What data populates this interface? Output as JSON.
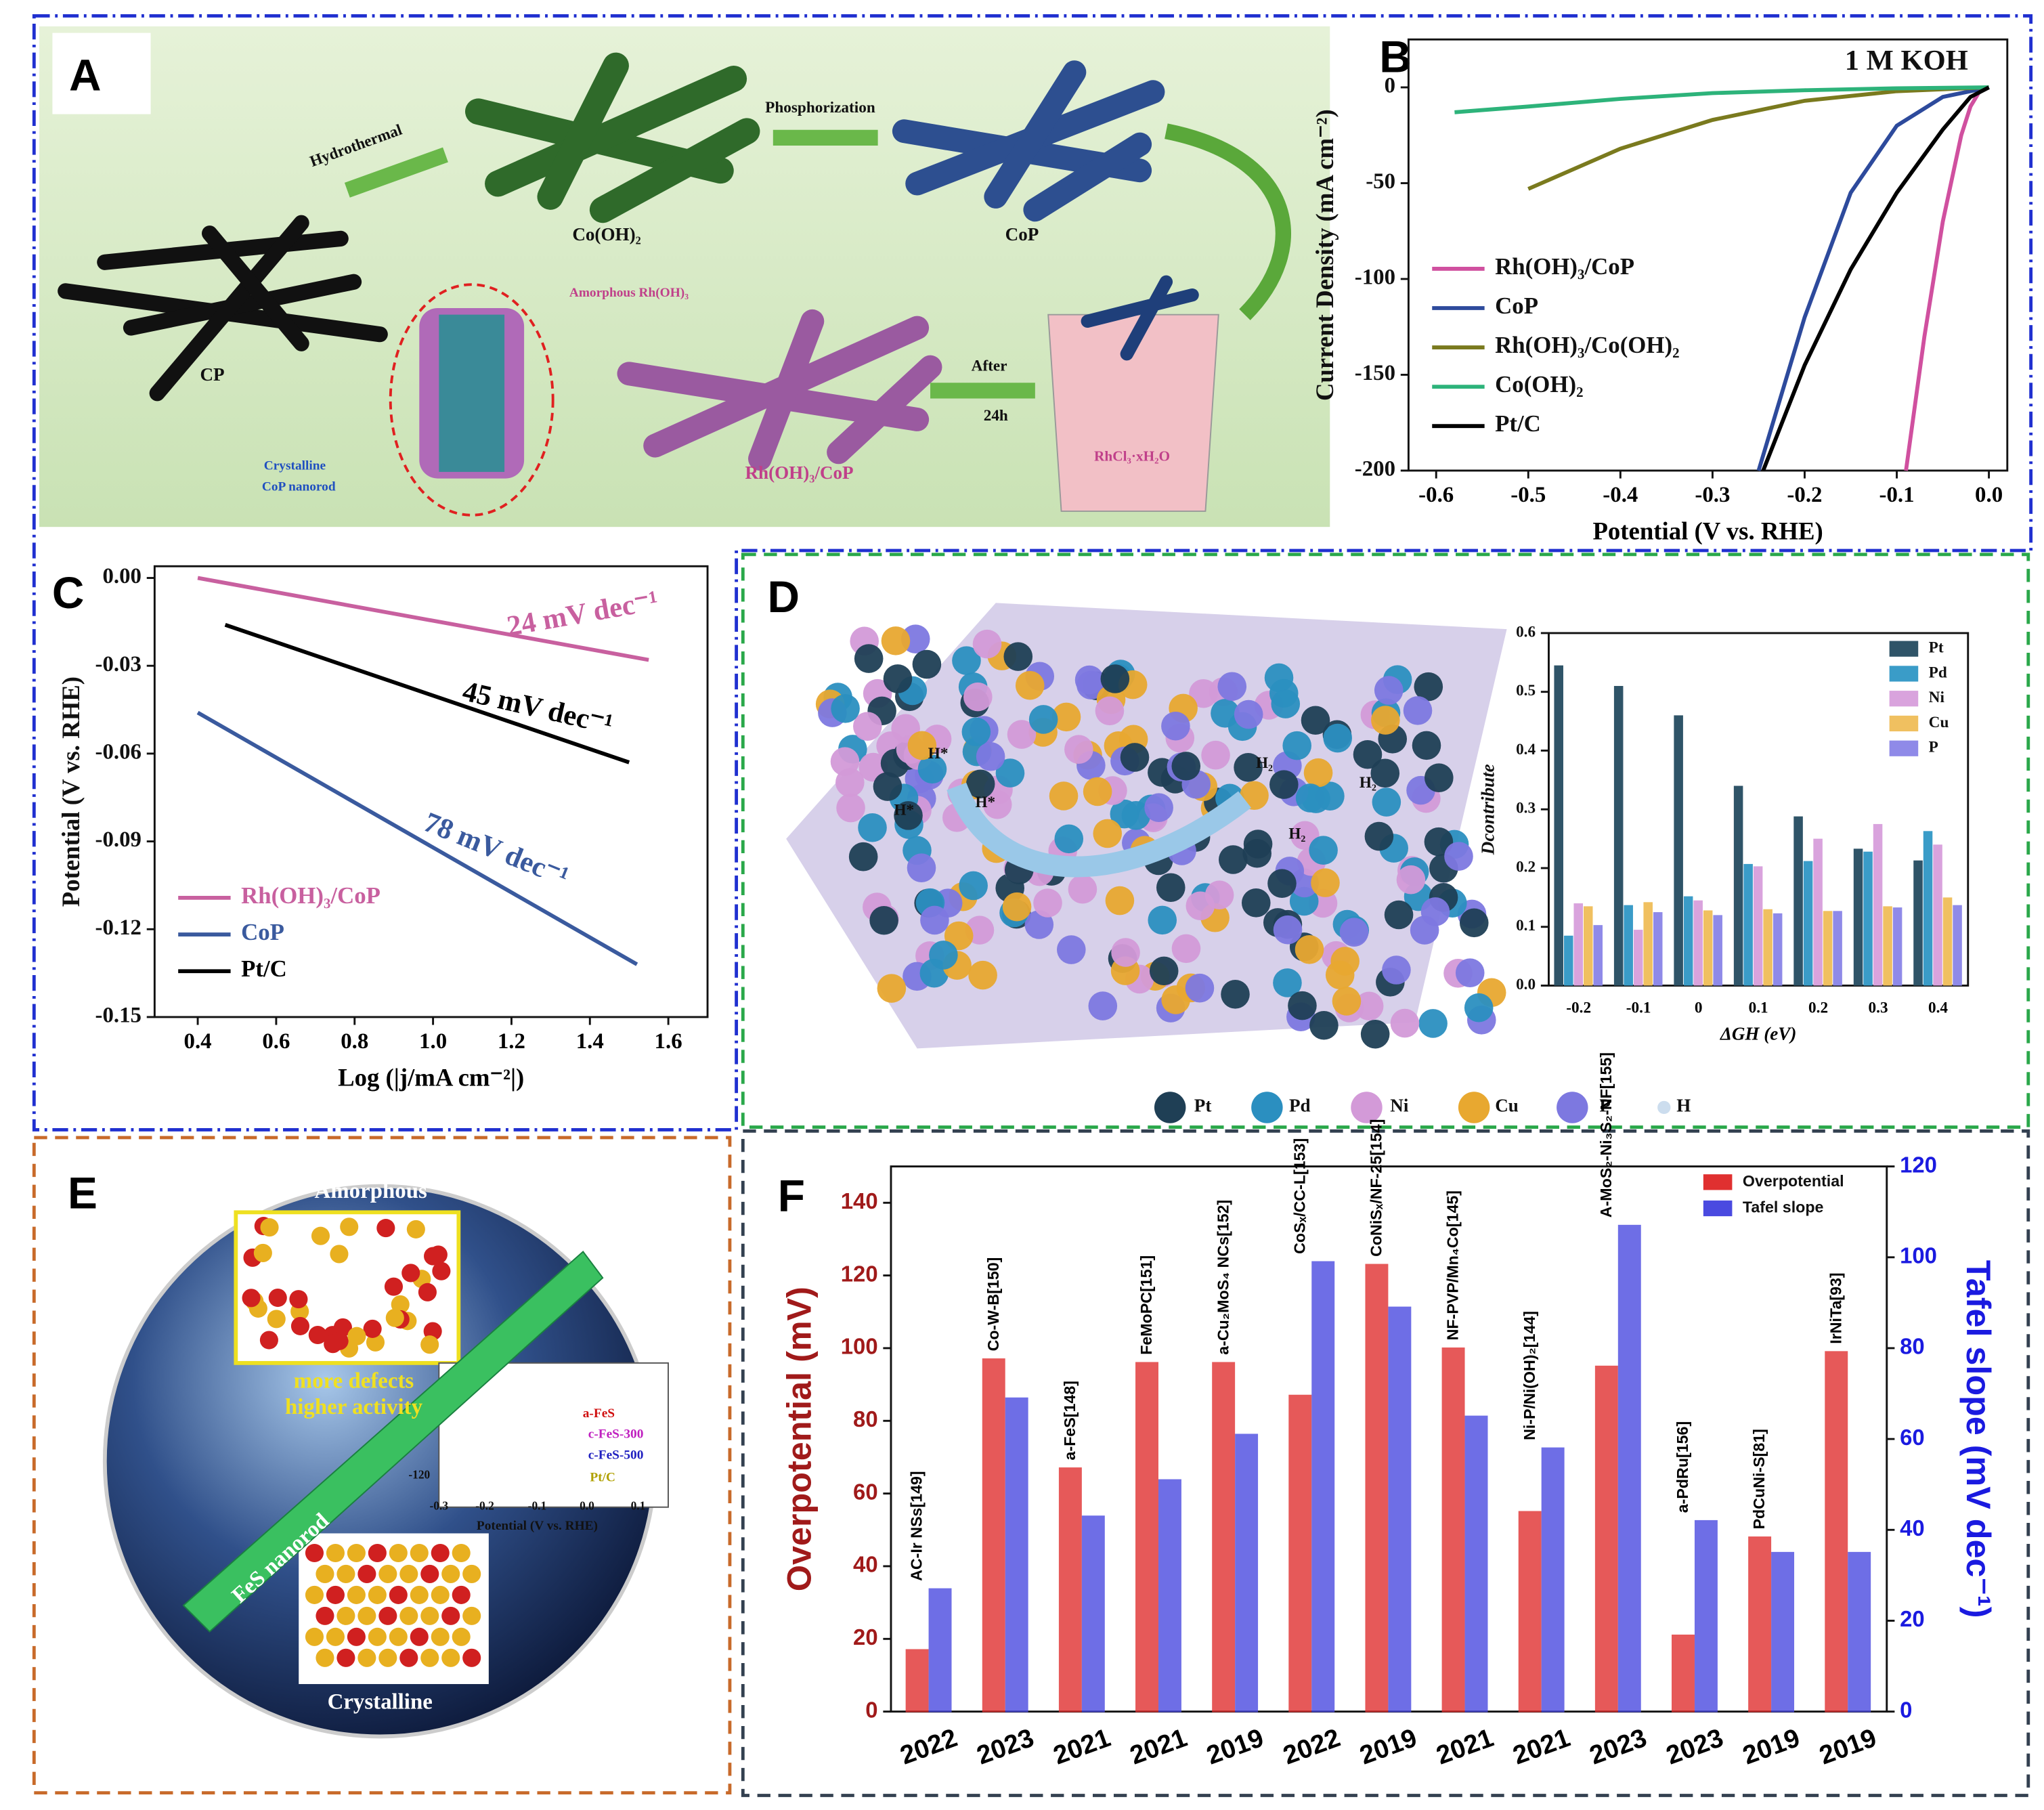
{
  "chart_data": [
    {
      "type": "line",
      "ylabel": "Current Density (mA cm⁻²)",
      "xlabel": "Potential (V vs. RHE)",
      "annotations": [
        "1 M KOH"
      ],
      "xlim": [
        -0.63,
        0.02
      ],
      "ylim": [
        -200,
        25
      ],
      "xticks": [
        {
          "value": -0.6,
          "label": "-0.6"
        },
        {
          "value": -0.5,
          "label": "-0.5"
        },
        {
          "value": -0.4,
          "label": "-0.4"
        },
        {
          "value": -0.3,
          "label": "-0.3"
        },
        {
          "value": -0.2,
          "label": "-0.2"
        },
        {
          "value": -0.1,
          "label": "-0.1"
        },
        {
          "value": 0,
          "label": "0.0"
        }
      ],
      "yticks": [
        -200,
        -150,
        -100,
        -50,
        0
      ],
      "legend": "lower left",
      "series": [
        {
          "name": "Rh(OH)₃/CoP",
          "color": "#d0509f",
          "x": [
            -0.09,
            -0.07,
            -0.05,
            -0.03,
            -0.02,
            -0.01,
            0
          ],
          "values": [
            -200,
            -130,
            -70,
            -25,
            -10,
            -2,
            0
          ]
        },
        {
          "name": "CoP",
          "color": "#2d4a9c",
          "x": [
            -0.25,
            -0.2,
            -0.15,
            -0.1,
            -0.05,
            0
          ],
          "values": [
            -200,
            -120,
            -55,
            -20,
            -5,
            0
          ]
        },
        {
          "name": "Rh(OH)₃/Co(OH)₂",
          "color": "#7a7a1e",
          "x": [
            -0.5,
            -0.4,
            -0.3,
            -0.2,
            -0.1,
            0
          ],
          "values": [
            -53,
            -32,
            -17,
            -7,
            -2,
            0
          ]
        },
        {
          "name": "Co(OH)₂",
          "color": "#2db37a",
          "x": [
            -0.58,
            -0.5,
            -0.4,
            -0.3,
            -0.2,
            -0.1,
            0
          ],
          "values": [
            -13,
            -10,
            -6,
            -3,
            -1.5,
            -0.5,
            0
          ]
        },
        {
          "name": "Pt/C",
          "color": "#000000",
          "x": [
            -0.245,
            -0.2,
            -0.15,
            -0.1,
            -0.05,
            -0.02,
            0
          ],
          "values": [
            -200,
            -145,
            -95,
            -55,
            -22,
            -5,
            0
          ]
        }
      ]
    },
    {
      "type": "line",
      "ylabel": "Potential (V vs. RHE)",
      "xlabel": "Log (|j/mA cm⁻²|)",
      "annotations": [
        "24 mV dec⁻¹",
        "45 mV dec⁻¹",
        "78 mV dec⁻¹"
      ],
      "xlim": [
        0.29,
        1.7
      ],
      "ylim": [
        -0.15,
        0.004
      ],
      "xticks": [
        0.4,
        0.6,
        0.8,
        {
          "value": 1,
          "label": "1.0"
        },
        1.2,
        1.4,
        1.6
      ],
      "yticks": [
        {
          "value": 0,
          "label": "0.00"
        },
        {
          "value": -0.03,
          "label": "-0.03"
        },
        {
          "value": -0.06,
          "label": "-0.06"
        },
        {
          "value": -0.09,
          "label": "-0.09"
        },
        {
          "value": -0.12,
          "label": "-0.12"
        },
        {
          "value": -0.15,
          "label": "-0.15"
        }
      ],
      "legend": "lower left",
      "series": [
        {
          "name": "Rh(OH)₃/CoP",
          "color": "#c8609f",
          "x": [
            0.4,
            1.55
          ],
          "values": [
            0,
            -0.028
          ]
        },
        {
          "name": "CoP",
          "color": "#3a5a9e",
          "x": [
            0.4,
            1.52
          ],
          "values": [
            -0.046,
            -0.132
          ]
        },
        {
          "name": "Pt/C",
          "color": "#000000",
          "x": [
            0.47,
            1.5
          ],
          "values": [
            -0.016,
            -0.063
          ]
        }
      ]
    },
    {
      "type": "bar",
      "ylabel": "Dcontribute",
      "xlabel": "ΔGH (eV)",
      "categories": [
        "-0.2",
        "-0.1",
        "0",
        "0.1",
        "0.2",
        "0.3",
        "0.4"
      ],
      "ylim": [
        0,
        0.6
      ],
      "yticks": [
        {
          "value": 0,
          "label": "0.0"
        },
        0.1,
        0.2,
        0.3,
        0.4,
        0.5,
        0.6
      ],
      "legend": "upper right",
      "series": [
        {
          "name": "Pt",
          "color": "#2f5468",
          "values": [
            0.545,
            0.51,
            0.46,
            0.34,
            0.288,
            0.233,
            0.213
          ]
        },
        {
          "name": "Pd",
          "color": "#3a9cc8",
          "values": [
            0.085,
            0.137,
            0.152,
            0.207,
            0.212,
            0.228,
            0.263
          ]
        },
        {
          "name": "Ni",
          "color": "#d9a3dd",
          "values": [
            0.14,
            0.095,
            0.145,
            0.203,
            0.25,
            0.275,
            0.24
          ]
        },
        {
          "name": "Cu",
          "color": "#f0c060",
          "values": [
            0.135,
            0.142,
            0.128,
            0.13,
            0.127,
            0.135,
            0.15
          ]
        },
        {
          "name": "P",
          "color": "#8f8ae8",
          "values": [
            0.103,
            0.125,
            0.12,
            0.123,
            0.127,
            0.133,
            0.137
          ]
        }
      ]
    },
    {
      "type": "bar",
      "ylabel": "Overpotential (mV)",
      "y2label": "Tafel slope (mV dec⁻¹)",
      "categories": [
        "2022",
        "2023",
        "2021",
        "2021",
        "2019",
        "2022",
        "2019",
        "2021",
        "2021",
        "2023",
        "2023",
        "2019",
        "2019"
      ],
      "annotations": [
        "AC-Ir NSs[149]",
        "Co-W-B[150]",
        "a-FeS[148]",
        "FeMoPC[151]",
        "a-Cu₂MoS₄ NCs[152]",
        "CoSₓ/CC-L[153]",
        "CoNiSₓ/NF-25[154]",
        "NF-PVP/Mn₄Co[145]",
        "Ni-P/Ni(OH)₂[144]",
        "A-MoS₂-Ni₃S₂-NF[155]",
        "a-PdRu[156]",
        "PdCuNi-S[81]",
        "IrNiTa[93]"
      ],
      "ylim": [
        0,
        150
      ],
      "yticks": [
        0,
        20,
        40,
        60,
        80,
        100,
        120,
        140
      ],
      "y2lim": [
        0,
        120
      ],
      "y2ticks": [
        0,
        20,
        40,
        60,
        80,
        100,
        120
      ],
      "legend": "upper right",
      "series": [
        {
          "name": "Overpotential",
          "color": "#e03030",
          "values": [
            17,
            97,
            67,
            96,
            96,
            87,
            123,
            100,
            55,
            95,
            21,
            48,
            99
          ]
        },
        {
          "name": "Tafel slope",
          "color": "#4a4ae0",
          "axis": "y2",
          "values": [
            27,
            69,
            43,
            51,
            61,
            99,
            89,
            65,
            58,
            107,
            42,
            35,
            35
          ]
        }
      ]
    }
  ],
  "illustrations": {
    "A": {
      "label": "A",
      "texts": [
        "Hydrothermal",
        "Phosphorization",
        "Co(OH)₂",
        "CoP",
        "CP",
        "Amorphous Rh(OH)₃",
        "After",
        "24h",
        "Crystalline",
        "CoP nanorod",
        "Rh(OH)₃/CoP",
        "RhCl₃·xH₂O"
      ]
    },
    "B": {
      "label": "B"
    },
    "C": {
      "label": "C"
    },
    "D": {
      "label": "D",
      "texts": [
        "Pt",
        "Pd",
        "Ni",
        "Cu",
        "P",
        "H",
        "H*",
        "H*",
        "H*",
        "H₂",
        "H₂",
        "H₂"
      ]
    },
    "E": {
      "label": "E",
      "texts": [
        "Amorphous",
        "more defects",
        "higher activity",
        "FeS nanorod",
        "Crystalline",
        "a-FeS",
        "c-FeS-300",
        "c-FeS-500",
        "Pt/C",
        "Potential (V vs. RHE)",
        "-0.3",
        "-0.2",
        "-0.1",
        "0.0",
        "0.1",
        "-120"
      ]
    },
    "F": {
      "label": "F"
    }
  }
}
